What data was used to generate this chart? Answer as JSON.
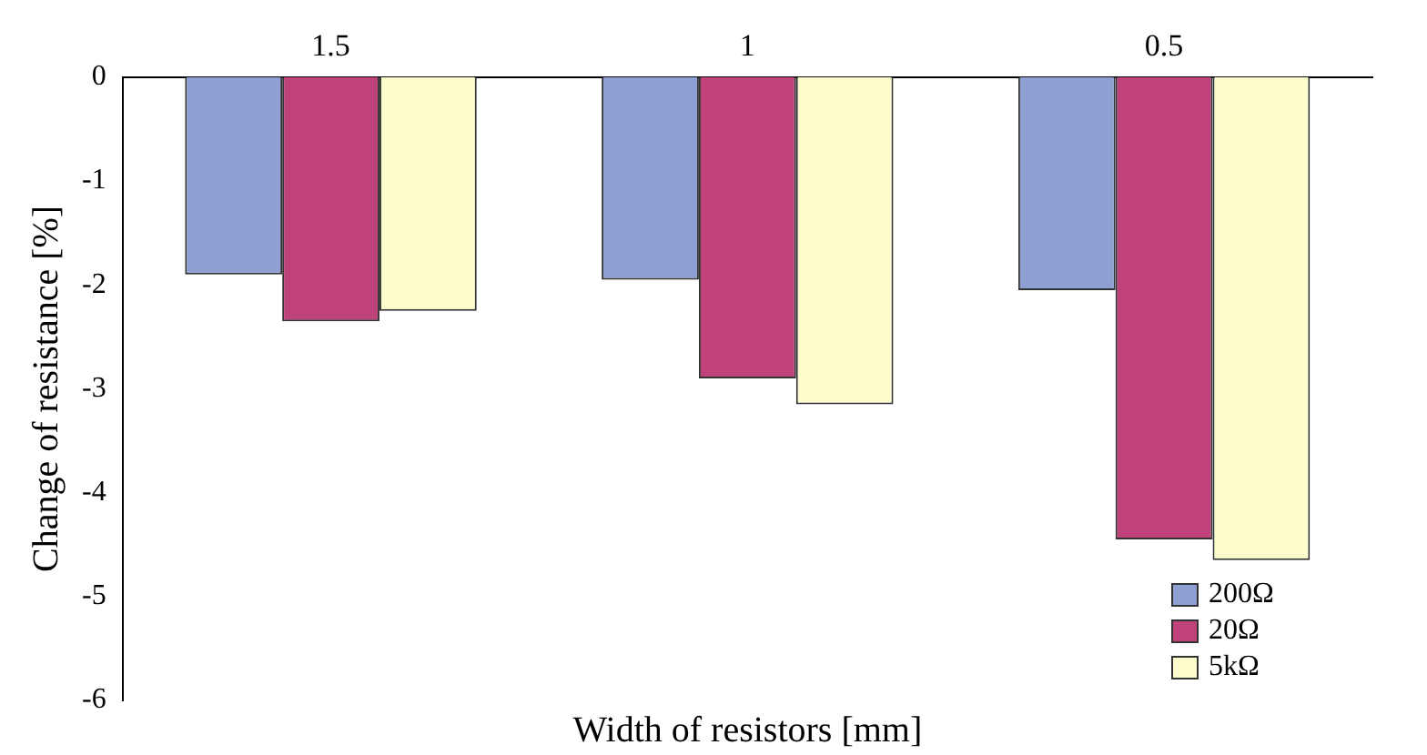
{
  "chart_data": {
    "type": "bar",
    "xlabel": "Width of resistors [mm]",
    "ylabel": "Change of resistance [%]",
    "categories": [
      "1.5",
      "1",
      "0.5"
    ],
    "series": [
      {
        "name": "200Ω",
        "color": "#8e9fd4",
        "values": [
          -1.9,
          -1.95,
          -2.05
        ]
      },
      {
        "name": "20Ω",
        "color": "#c0427a",
        "values": [
          -2.35,
          -2.9,
          -4.45
        ]
      },
      {
        "name": "5kΩ",
        "color": "#fdfccc",
        "values": [
          -2.25,
          -3.15,
          -4.65
        ]
      }
    ],
    "ylim": [
      -6,
      0
    ],
    "yticks": [
      -6,
      -5,
      -4,
      -3,
      -2,
      -1,
      0
    ],
    "grid": false,
    "legend": "bottom right"
  }
}
